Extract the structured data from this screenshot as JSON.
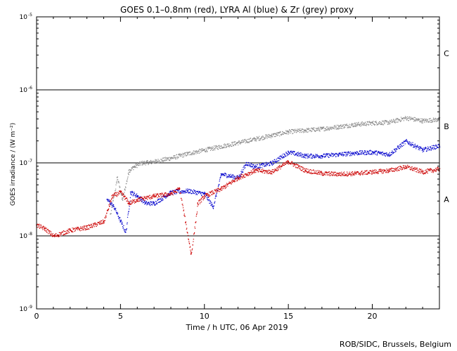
{
  "chart_data": {
    "type": "scatter",
    "title": "GOES 0.1–0.8nm (red), LYRA Al (blue) & Zr (grey) proxy",
    "xlabel": "Time / h UTC, 06 Apr 2019",
    "ylabel": "GOES irradiance / (W m⁻²)",
    "xlim": [
      0,
      24
    ],
    "ylim_log10": [
      -9,
      -5
    ],
    "x_ticks": [
      0,
      5,
      10,
      15,
      20
    ],
    "x_tick_labels": [
      "0",
      "5",
      "10",
      "15",
      "20"
    ],
    "y_tick_values_log10": [
      -9,
      -8,
      -7,
      -6,
      -5
    ],
    "y_tick_labels": [
      {
        "base": "10",
        "exp": "-9"
      },
      {
        "base": "10",
        "exp": "-8"
      },
      {
        "base": "10",
        "exp": "-7"
      },
      {
        "base": "10",
        "exp": "-6"
      },
      {
        "base": "10",
        "exp": "-5"
      }
    ],
    "flare_class_lines_log10": [
      -8,
      -7,
      -6
    ],
    "flare_class_labels": [
      {
        "label": "A",
        "log10": -7.5
      },
      {
        "label": "B",
        "log10": -6.5
      },
      {
        "label": "C",
        "log10": -5.5
      }
    ],
    "series": [
      {
        "name": "LYRA Zr (grey) proxy",
        "color": "#8c8c8c",
        "start": 4.4,
        "points_log10": [
          [
            4.4,
            -7.7
          ],
          [
            4.8,
            -7.2
          ],
          [
            5.1,
            -7.5
          ],
          [
            5.5,
            -7.1
          ],
          [
            5.8,
            -7.05
          ],
          [
            6.2,
            -7.0
          ],
          [
            7.0,
            -6.98
          ],
          [
            8.0,
            -6.93
          ],
          [
            9.0,
            -6.87
          ],
          [
            10.0,
            -6.82
          ],
          [
            11.0,
            -6.77
          ],
          [
            12.0,
            -6.72
          ],
          [
            13.0,
            -6.67
          ],
          [
            14.0,
            -6.62
          ],
          [
            15.0,
            -6.57
          ],
          [
            16.0,
            -6.55
          ],
          [
            17.0,
            -6.53
          ],
          [
            18.0,
            -6.5
          ],
          [
            19.0,
            -6.47
          ],
          [
            20.0,
            -6.45
          ],
          [
            21.0,
            -6.44
          ],
          [
            22.0,
            -6.38
          ],
          [
            23.0,
            -6.42
          ],
          [
            24.0,
            -6.4
          ]
        ]
      },
      {
        "name": "LYRA Al (blue) proxy",
        "color": "#0000cc",
        "start": 4.2,
        "points_log10": [
          [
            4.2,
            -7.5
          ],
          [
            4.6,
            -7.6
          ],
          [
            5.0,
            -7.8
          ],
          [
            5.3,
            -7.95
          ],
          [
            5.6,
            -7.4
          ],
          [
            6.0,
            -7.45
          ],
          [
            6.5,
            -7.55
          ],
          [
            7.0,
            -7.55
          ],
          [
            8.0,
            -7.4
          ],
          [
            9.0,
            -7.38
          ],
          [
            10.0,
            -7.42
          ],
          [
            10.5,
            -7.6
          ],
          [
            11.0,
            -7.15
          ],
          [
            12.0,
            -7.2
          ],
          [
            12.5,
            -7.0
          ],
          [
            13.0,
            -7.05
          ],
          [
            14.0,
            -7.0
          ],
          [
            15.0,
            -6.85
          ],
          [
            16.0,
            -6.9
          ],
          [
            17.0,
            -6.9
          ],
          [
            18.0,
            -6.88
          ],
          [
            19.0,
            -6.86
          ],
          [
            20.0,
            -6.85
          ],
          [
            21.0,
            -6.88
          ],
          [
            22.0,
            -6.7
          ],
          [
            23.0,
            -6.82
          ],
          [
            24.0,
            -6.76
          ]
        ]
      },
      {
        "name": "GOES 0.1–0.8nm (red)",
        "color": "#cc0000",
        "start": 0.0,
        "points_log10": [
          [
            0.0,
            -7.85
          ],
          [
            0.5,
            -7.9
          ],
          [
            1.0,
            -8.0
          ],
          [
            2.0,
            -7.92
          ],
          [
            3.0,
            -7.88
          ],
          [
            4.0,
            -7.8
          ],
          [
            4.5,
            -7.45
          ],
          [
            5.0,
            -7.4
          ],
          [
            5.5,
            -7.55
          ],
          [
            6.0,
            -7.5
          ],
          [
            7.0,
            -7.45
          ],
          [
            8.0,
            -7.42
          ],
          [
            8.5,
            -7.35
          ],
          [
            9.2,
            -8.25
          ],
          [
            9.6,
            -7.55
          ],
          [
            10.0,
            -7.45
          ],
          [
            11.0,
            -7.35
          ],
          [
            12.0,
            -7.2
          ],
          [
            13.0,
            -7.1
          ],
          [
            14.0,
            -7.12
          ],
          [
            15.0,
            -6.98
          ],
          [
            16.0,
            -7.1
          ],
          [
            17.0,
            -7.14
          ],
          [
            18.0,
            -7.15
          ],
          [
            19.0,
            -7.14
          ],
          [
            20.0,
            -7.12
          ],
          [
            21.0,
            -7.1
          ],
          [
            22.0,
            -7.05
          ],
          [
            23.0,
            -7.12
          ],
          [
            24.0,
            -7.08
          ]
        ]
      }
    ]
  },
  "footer": {
    "credit": "ROB/SIDC, Brussels, Belgium"
  }
}
